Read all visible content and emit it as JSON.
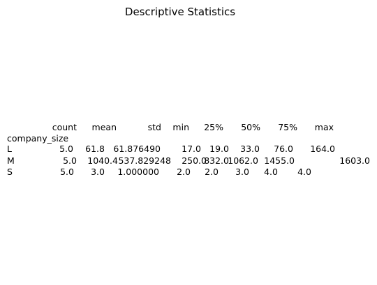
{
  "chart_data": {
    "type": "table",
    "title": "Descriptive Statistics",
    "index_name": "company_size",
    "columns": [
      "count",
      "mean",
      "std",
      "min",
      "25%",
      "50%",
      "75%",
      "max"
    ],
    "rows": [
      {
        "label": "L",
        "values": [
          "5.0",
          "61.8",
          "61.876490",
          "17.0",
          "19.0",
          "33.0",
          "76.0",
          "164.0"
        ]
      },
      {
        "label": "M",
        "values": [
          "5.0",
          "1040.4",
          "537.829248",
          "250.0",
          "832.0",
          "1062.0",
          "1455.0",
          "1603.0"
        ]
      },
      {
        "label": "S",
        "values": [
          "5.0",
          "3.0",
          "1.000000",
          "2.0",
          "2.0",
          "3.0",
          "4.0",
          "4.0"
        ]
      }
    ]
  }
}
